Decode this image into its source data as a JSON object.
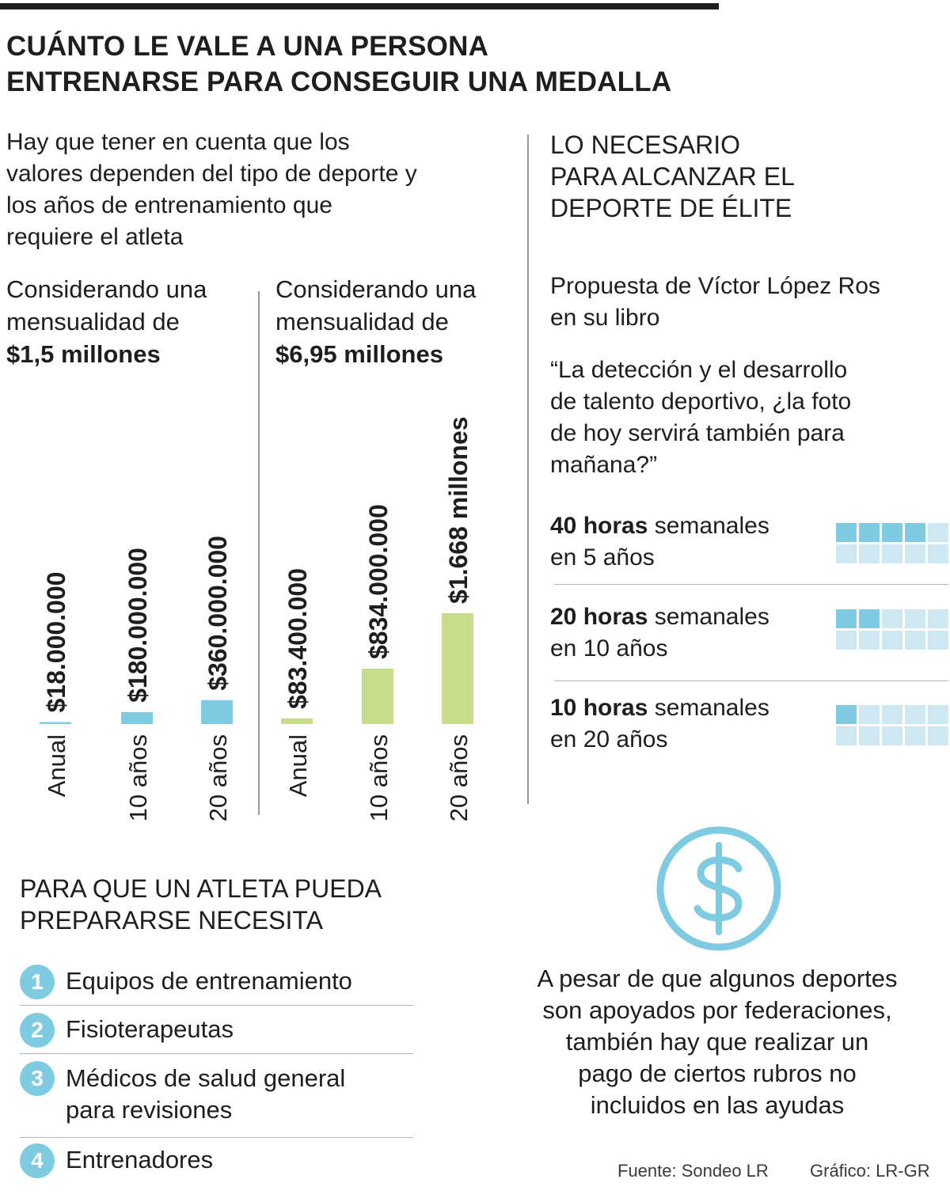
{
  "header": {
    "title_lines": [
      "CUÁNTO LE VALE A UNA PERSONA",
      "ENTRENARSE PARA CONSEGUIR UNA MEDALLA"
    ],
    "intro_lines": [
      "Hay que tener en cuenta que los",
      "valores dependen del tipo de deporte y",
      "los años de entrenamiento que",
      "requiere el atleta"
    ]
  },
  "scenarios": [
    {
      "lines": [
        "Considerando una",
        "mensualidad de"
      ],
      "amount": "$1,5 millones"
    },
    {
      "lines": [
        "Considerando una",
        "mensualidad de"
      ],
      "amount": "$6,95 millones"
    }
  ],
  "chart_data": {
    "type": "bar",
    "ylim": [
      0,
      1668000000
    ],
    "groups": [
      {
        "color": "#7ecbe2",
        "categories": [
          "Anual",
          "10 años",
          "20 años"
        ],
        "values": [
          18000000,
          180000000,
          360000000
        ],
        "labels": [
          "$18.000.000",
          "$180.000.000",
          "$360.000.000"
        ]
      },
      {
        "color": "#c8dc8a",
        "categories": [
          "Anual",
          "10 años",
          "20 años"
        ],
        "values": [
          83400000,
          834000000,
          1668000000
        ],
        "labels": [
          "$83.400.000",
          "$834.000.000",
          "$1.668 millones"
        ]
      }
    ]
  },
  "right": {
    "title_lines": [
      "LO NECESARIO",
      "PARA ALCANZAR EL",
      "DEPORTE DE ÉLITE"
    ],
    "proposal_lines": [
      "Propuesta de Víctor López Ros",
      "en su libro"
    ],
    "quote_lines": [
      "“La detección y el desarrollo",
      "de talento deportivo, ¿la foto",
      "de hoy servirá también para",
      "mañana?”"
    ],
    "plans": [
      {
        "bold": "40 horas",
        "rest": " semanales",
        "line2": "en 5 años",
        "filled": 4
      },
      {
        "bold": "20 horas",
        "rest": " semanales",
        "line2": "en 10 años",
        "filled": 2
      },
      {
        "bold": "10 horas",
        "rest": " semanales",
        "line2": "en 20 años",
        "filled": 1
      }
    ]
  },
  "needs": {
    "title_lines": [
      "PARA QUE UN ATLETA PUEDA",
      "PREPARARSE NECESITA"
    ],
    "items": [
      {
        "num": "1",
        "lines": [
          "Equipos de entrenamiento"
        ]
      },
      {
        "num": "2",
        "lines": [
          "Fisioterapeutas"
        ]
      },
      {
        "num": "3",
        "lines": [
          "Médicos de salud general",
          "para revisiones"
        ]
      },
      {
        "num": "4",
        "lines": [
          "Entrenadores"
        ]
      }
    ]
  },
  "dollar_icon": "dollar-circle-icon",
  "note_lines": [
    "A pesar de que algunos deportes",
    "son apoyados por federaciones,",
    "también hay que realizar un",
    "pago de ciertos rubros no",
    "incluidos en las ayudas"
  ],
  "footer": {
    "source": "Fuente: Sondeo LR",
    "credit": "Gráfico: LR-GR"
  },
  "colors": {
    "blue": "#7ecbe2",
    "light_blue": "#cfe7f1",
    "green": "#c8dc8a",
    "text": "#1e1e1e"
  }
}
